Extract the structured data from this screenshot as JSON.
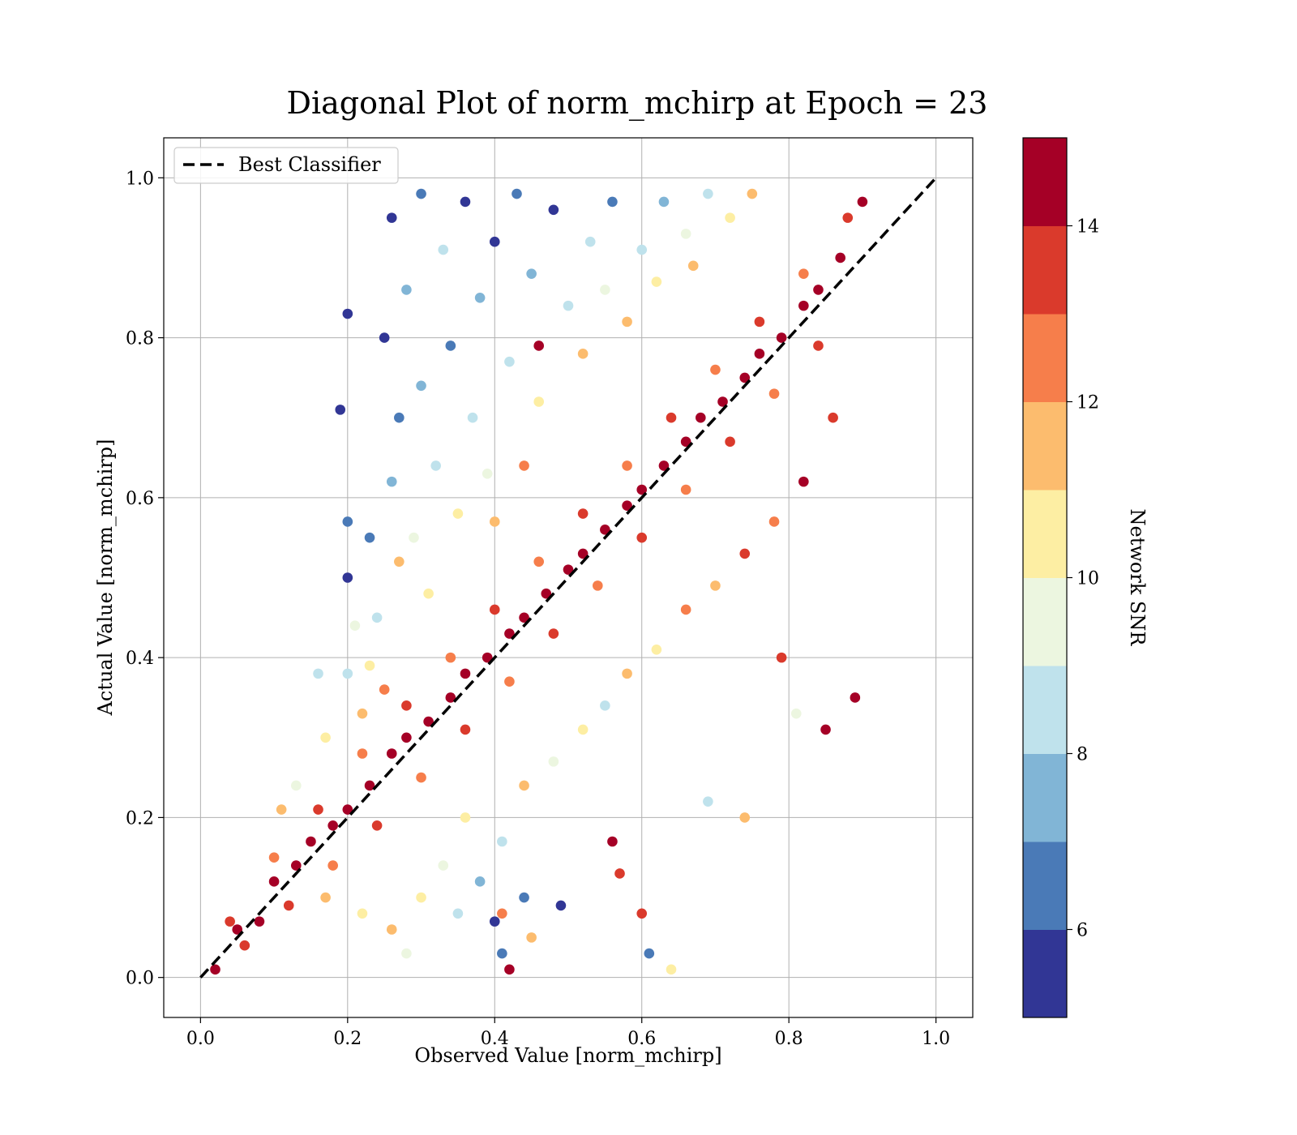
{
  "chart_data": {
    "type": "scatter",
    "title": "Diagonal Plot of norm_mchirp at Epoch = 23",
    "xlabel": "Observed Value [norm_mchirp]",
    "ylabel": "Actual Value [norm_mchirp]",
    "xlim": [
      -0.05,
      1.05
    ],
    "ylim": [
      -0.05,
      1.05
    ],
    "x_ticks": [
      "0.0",
      "0.2",
      "0.4",
      "0.6",
      "0.8",
      "1.0"
    ],
    "y_ticks": [
      "0.0",
      "0.2",
      "0.4",
      "0.6",
      "0.8",
      "1.0"
    ],
    "grid": true,
    "legend": {
      "position": "upper-left",
      "entries": [
        "Best Classifier"
      ]
    },
    "reference_line": {
      "name": "Best Classifier",
      "style": "dashed",
      "color": "#000000",
      "x": [
        0.0,
        1.0
      ],
      "y": [
        0.0,
        1.0
      ]
    },
    "colorbar": {
      "label": "Network SNR",
      "range": [
        5,
        15
      ],
      "ticks": [
        "6",
        "8",
        "10",
        "12",
        "14"
      ],
      "tick_values": [
        6,
        8,
        10,
        12,
        14
      ],
      "bin_edges": [
        5,
        6,
        7,
        8,
        9,
        10,
        11,
        12,
        13,
        14,
        15
      ],
      "colors": [
        "#313695",
        "#4a7ab7",
        "#81b5d6",
        "#bfe2ec",
        "#ecf6e0",
        "#fdeea3",
        "#fcbc6e",
        "#f67e4b",
        "#da3a2c",
        "#a50026"
      ]
    },
    "points": [
      {
        "x": 0.02,
        "y": 0.01,
        "snr": 14.5
      },
      {
        "x": 0.05,
        "y": 0.06,
        "snr": 14.2
      },
      {
        "x": 0.08,
        "y": 0.07,
        "snr": 14.6
      },
      {
        "x": 0.1,
        "y": 0.12,
        "snr": 14.4
      },
      {
        "x": 0.13,
        "y": 0.14,
        "snr": 14.8
      },
      {
        "x": 0.15,
        "y": 0.17,
        "snr": 14.3
      },
      {
        "x": 0.18,
        "y": 0.19,
        "snr": 14.7
      },
      {
        "x": 0.2,
        "y": 0.21,
        "snr": 14.5
      },
      {
        "x": 0.23,
        "y": 0.24,
        "snr": 14.9
      },
      {
        "x": 0.26,
        "y": 0.28,
        "snr": 14.4
      },
      {
        "x": 0.28,
        "y": 0.3,
        "snr": 14.6
      },
      {
        "x": 0.31,
        "y": 0.32,
        "snr": 14.8
      },
      {
        "x": 0.34,
        "y": 0.35,
        "snr": 14.2
      },
      {
        "x": 0.36,
        "y": 0.38,
        "snr": 14.7
      },
      {
        "x": 0.39,
        "y": 0.4,
        "snr": 14.5
      },
      {
        "x": 0.42,
        "y": 0.43,
        "snr": 14.9
      },
      {
        "x": 0.44,
        "y": 0.45,
        "snr": 14.3
      },
      {
        "x": 0.47,
        "y": 0.48,
        "snr": 14.6
      },
      {
        "x": 0.5,
        "y": 0.51,
        "snr": 14.8
      },
      {
        "x": 0.52,
        "y": 0.53,
        "snr": 14.4
      },
      {
        "x": 0.55,
        "y": 0.56,
        "snr": 14.7
      },
      {
        "x": 0.58,
        "y": 0.59,
        "snr": 14.5
      },
      {
        "x": 0.6,
        "y": 0.61,
        "snr": 14.9
      },
      {
        "x": 0.63,
        "y": 0.64,
        "snr": 14.2
      },
      {
        "x": 0.66,
        "y": 0.67,
        "snr": 14.6
      },
      {
        "x": 0.68,
        "y": 0.7,
        "snr": 14.8
      },
      {
        "x": 0.71,
        "y": 0.72,
        "snr": 14.4
      },
      {
        "x": 0.74,
        "y": 0.75,
        "snr": 14.7
      },
      {
        "x": 0.76,
        "y": 0.78,
        "snr": 14.5
      },
      {
        "x": 0.79,
        "y": 0.8,
        "snr": 14.9
      },
      {
        "x": 0.82,
        "y": 0.84,
        "snr": 14.3
      },
      {
        "x": 0.84,
        "y": 0.86,
        "snr": 14.6
      },
      {
        "x": 0.87,
        "y": 0.9,
        "snr": 14.8
      },
      {
        "x": 0.9,
        "y": 0.97,
        "snr": 14.4
      },
      {
        "x": 0.06,
        "y": 0.04,
        "snr": 13.6
      },
      {
        "x": 0.12,
        "y": 0.09,
        "snr": 13.2
      },
      {
        "x": 0.18,
        "y": 0.14,
        "snr": 12.7
      },
      {
        "x": 0.24,
        "y": 0.19,
        "snr": 13.4
      },
      {
        "x": 0.3,
        "y": 0.25,
        "snr": 12.4
      },
      {
        "x": 0.36,
        "y": 0.31,
        "snr": 13.8
      },
      {
        "x": 0.42,
        "y": 0.37,
        "snr": 12.9
      },
      {
        "x": 0.48,
        "y": 0.43,
        "snr": 13.1
      },
      {
        "x": 0.54,
        "y": 0.49,
        "snr": 12.6
      },
      {
        "x": 0.6,
        "y": 0.55,
        "snr": 13.5
      },
      {
        "x": 0.66,
        "y": 0.61,
        "snr": 12.8
      },
      {
        "x": 0.72,
        "y": 0.67,
        "snr": 13.3
      },
      {
        "x": 0.78,
        "y": 0.73,
        "snr": 12.5
      },
      {
        "x": 0.84,
        "y": 0.79,
        "snr": 13.7
      },
      {
        "x": 0.04,
        "y": 0.07,
        "snr": 13.5
      },
      {
        "x": 0.1,
        "y": 0.15,
        "snr": 12.8
      },
      {
        "x": 0.16,
        "y": 0.21,
        "snr": 13.2
      },
      {
        "x": 0.22,
        "y": 0.28,
        "snr": 12.3
      },
      {
        "x": 0.28,
        "y": 0.34,
        "snr": 13.9
      },
      {
        "x": 0.34,
        "y": 0.4,
        "snr": 12.6
      },
      {
        "x": 0.4,
        "y": 0.46,
        "snr": 13.4
      },
      {
        "x": 0.46,
        "y": 0.52,
        "snr": 12.9
      },
      {
        "x": 0.52,
        "y": 0.58,
        "snr": 13.6
      },
      {
        "x": 0.58,
        "y": 0.64,
        "snr": 12.4
      },
      {
        "x": 0.64,
        "y": 0.7,
        "snr": 13.1
      },
      {
        "x": 0.7,
        "y": 0.76,
        "snr": 12.7
      },
      {
        "x": 0.76,
        "y": 0.82,
        "snr": 13.8
      },
      {
        "x": 0.82,
        "y": 0.88,
        "snr": 12.5
      },
      {
        "x": 0.88,
        "y": 0.95,
        "snr": 13.3
      },
      {
        "x": 0.17,
        "y": 0.1,
        "snr": 11.4
      },
      {
        "x": 0.22,
        "y": 0.08,
        "snr": 10.8
      },
      {
        "x": 0.26,
        "y": 0.06,
        "snr": 11.6
      },
      {
        "x": 0.3,
        "y": 0.1,
        "snr": 10.3
      },
      {
        "x": 0.33,
        "y": 0.14,
        "snr": 9.5
      },
      {
        "x": 0.28,
        "y": 0.03,
        "snr": 9.8
      },
      {
        "x": 0.35,
        "y": 0.08,
        "snr": 8.6
      },
      {
        "x": 0.38,
        "y": 0.12,
        "snr": 7.5
      },
      {
        "x": 0.41,
        "y": 0.17,
        "snr": 8.2
      },
      {
        "x": 0.36,
        "y": 0.2,
        "snr": 10.6
      },
      {
        "x": 0.44,
        "y": 0.24,
        "snr": 11.2
      },
      {
        "x": 0.48,
        "y": 0.27,
        "snr": 9.4
      },
      {
        "x": 0.52,
        "y": 0.31,
        "snr": 10.9
      },
      {
        "x": 0.55,
        "y": 0.34,
        "snr": 8.4
      },
      {
        "x": 0.58,
        "y": 0.38,
        "snr": 11.5
      },
      {
        "x": 0.62,
        "y": 0.41,
        "snr": 10.1
      },
      {
        "x": 0.66,
        "y": 0.46,
        "snr": 12.2
      },
      {
        "x": 0.7,
        "y": 0.49,
        "snr": 11.3
      },
      {
        "x": 0.74,
        "y": 0.53,
        "snr": 13.2
      },
      {
        "x": 0.78,
        "y": 0.57,
        "snr": 12.4
      },
      {
        "x": 0.82,
        "y": 0.62,
        "snr": 14.6
      },
      {
        "x": 0.86,
        "y": 0.7,
        "snr": 13.5
      },
      {
        "x": 0.89,
        "y": 0.35,
        "snr": 14.7
      },
      {
        "x": 0.85,
        "y": 0.31,
        "snr": 14.1
      },
      {
        "x": 0.81,
        "y": 0.33,
        "snr": 9.9
      },
      {
        "x": 0.79,
        "y": 0.4,
        "snr": 13.9
      },
      {
        "x": 0.74,
        "y": 0.2,
        "snr": 11.8
      },
      {
        "x": 0.69,
        "y": 0.22,
        "snr": 8.9
      },
      {
        "x": 0.64,
        "y": 0.01,
        "snr": 10.2
      },
      {
        "x": 0.6,
        "y": 0.08,
        "snr": 13.6
      },
      {
        "x": 0.57,
        "y": 0.13,
        "snr": 13.9
      },
      {
        "x": 0.56,
        "y": 0.17,
        "snr": 14.5
      },
      {
        "x": 0.49,
        "y": 0.09,
        "snr": 5.7
      },
      {
        "x": 0.44,
        "y": 0.1,
        "snr": 6.2
      },
      {
        "x": 0.41,
        "y": 0.08,
        "snr": 12.7
      },
      {
        "x": 0.4,
        "y": 0.07,
        "snr": 5.4
      },
      {
        "x": 0.41,
        "y": 0.03,
        "snr": 6.4
      },
      {
        "x": 0.42,
        "y": 0.01,
        "snr": 14.8
      },
      {
        "x": 0.61,
        "y": 0.03,
        "snr": 6.5
      },
      {
        "x": 0.45,
        "y": 0.05,
        "snr": 11.1
      },
      {
        "x": 0.22,
        "y": 0.33,
        "snr": 11.8
      },
      {
        "x": 0.2,
        "y": 0.38,
        "snr": 8.3
      },
      {
        "x": 0.21,
        "y": 0.44,
        "snr": 9.1
      },
      {
        "x": 0.2,
        "y": 0.5,
        "snr": 5.6
      },
      {
        "x": 0.23,
        "y": 0.55,
        "snr": 6.8
      },
      {
        "x": 0.2,
        "y": 0.57,
        "snr": 6.1
      },
      {
        "x": 0.19,
        "y": 0.71,
        "snr": 5.3
      },
      {
        "x": 0.2,
        "y": 0.83,
        "snr": 5.5
      },
      {
        "x": 0.26,
        "y": 0.62,
        "snr": 7.2
      },
      {
        "x": 0.27,
        "y": 0.7,
        "snr": 6.6
      },
      {
        "x": 0.25,
        "y": 0.8,
        "snr": 5.9
      },
      {
        "x": 0.28,
        "y": 0.86,
        "snr": 7.8
      },
      {
        "x": 0.26,
        "y": 0.95,
        "snr": 5.2
      },
      {
        "x": 0.3,
        "y": 0.98,
        "snr": 6.3
      },
      {
        "x": 0.33,
        "y": 0.91,
        "snr": 8.7
      },
      {
        "x": 0.36,
        "y": 0.97,
        "snr": 5.8
      },
      {
        "x": 0.3,
        "y": 0.74,
        "snr": 7.4
      },
      {
        "x": 0.32,
        "y": 0.64,
        "snr": 8.1
      },
      {
        "x": 0.29,
        "y": 0.55,
        "snr": 9.3
      },
      {
        "x": 0.31,
        "y": 0.48,
        "snr": 10.4
      },
      {
        "x": 0.34,
        "y": 0.79,
        "snr": 6.9
      },
      {
        "x": 0.38,
        "y": 0.85,
        "snr": 7.6
      },
      {
        "x": 0.4,
        "y": 0.92,
        "snr": 5.1
      },
      {
        "x": 0.43,
        "y": 0.98,
        "snr": 6.7
      },
      {
        "x": 0.37,
        "y": 0.7,
        "snr": 8.5
      },
      {
        "x": 0.35,
        "y": 0.58,
        "snr": 10.7
      },
      {
        "x": 0.39,
        "y": 0.63,
        "snr": 9.6
      },
      {
        "x": 0.42,
        "y": 0.77,
        "snr": 8.8
      },
      {
        "x": 0.45,
        "y": 0.88,
        "snr": 7.3
      },
      {
        "x": 0.48,
        "y": 0.96,
        "snr": 5.6
      },
      {
        "x": 0.5,
        "y": 0.84,
        "snr": 8.9
      },
      {
        "x": 0.46,
        "y": 0.72,
        "snr": 10.2
      },
      {
        "x": 0.53,
        "y": 0.92,
        "snr": 8.4
      },
      {
        "x": 0.56,
        "y": 0.97,
        "snr": 6.4
      },
      {
        "x": 0.52,
        "y": 0.78,
        "snr": 11.3
      },
      {
        "x": 0.55,
        "y": 0.86,
        "snr": 9.7
      },
      {
        "x": 0.6,
        "y": 0.91,
        "snr": 8.6
      },
      {
        "x": 0.63,
        "y": 0.97,
        "snr": 7.8
      },
      {
        "x": 0.58,
        "y": 0.82,
        "snr": 11.6
      },
      {
        "x": 0.62,
        "y": 0.87,
        "snr": 10.6
      },
      {
        "x": 0.66,
        "y": 0.93,
        "snr": 9.1
      },
      {
        "x": 0.69,
        "y": 0.98,
        "snr": 8.3
      },
      {
        "x": 0.67,
        "y": 0.89,
        "snr": 11.9
      },
      {
        "x": 0.72,
        "y": 0.95,
        "snr": 10.8
      },
      {
        "x": 0.75,
        "y": 0.98,
        "snr": 11.4
      },
      {
        "x": 0.46,
        "y": 0.79,
        "snr": 14.6
      },
      {
        "x": 0.44,
        "y": 0.64,
        "snr": 12.9
      },
      {
        "x": 0.4,
        "y": 0.57,
        "snr": 11.7
      },
      {
        "x": 0.24,
        "y": 0.45,
        "snr": 8.7
      },
      {
        "x": 0.23,
        "y": 0.39,
        "snr": 10.5
      },
      {
        "x": 0.16,
        "y": 0.38,
        "snr": 8.2
      },
      {
        "x": 0.17,
        "y": 0.3,
        "snr": 10.9
      },
      {
        "x": 0.13,
        "y": 0.24,
        "snr": 9.3
      },
      {
        "x": 0.11,
        "y": 0.21,
        "snr": 11.6
      },
      {
        "x": 0.27,
        "y": 0.52,
        "snr": 11.2
      },
      {
        "x": 0.25,
        "y": 0.36,
        "snr": 12.3
      }
    ]
  }
}
